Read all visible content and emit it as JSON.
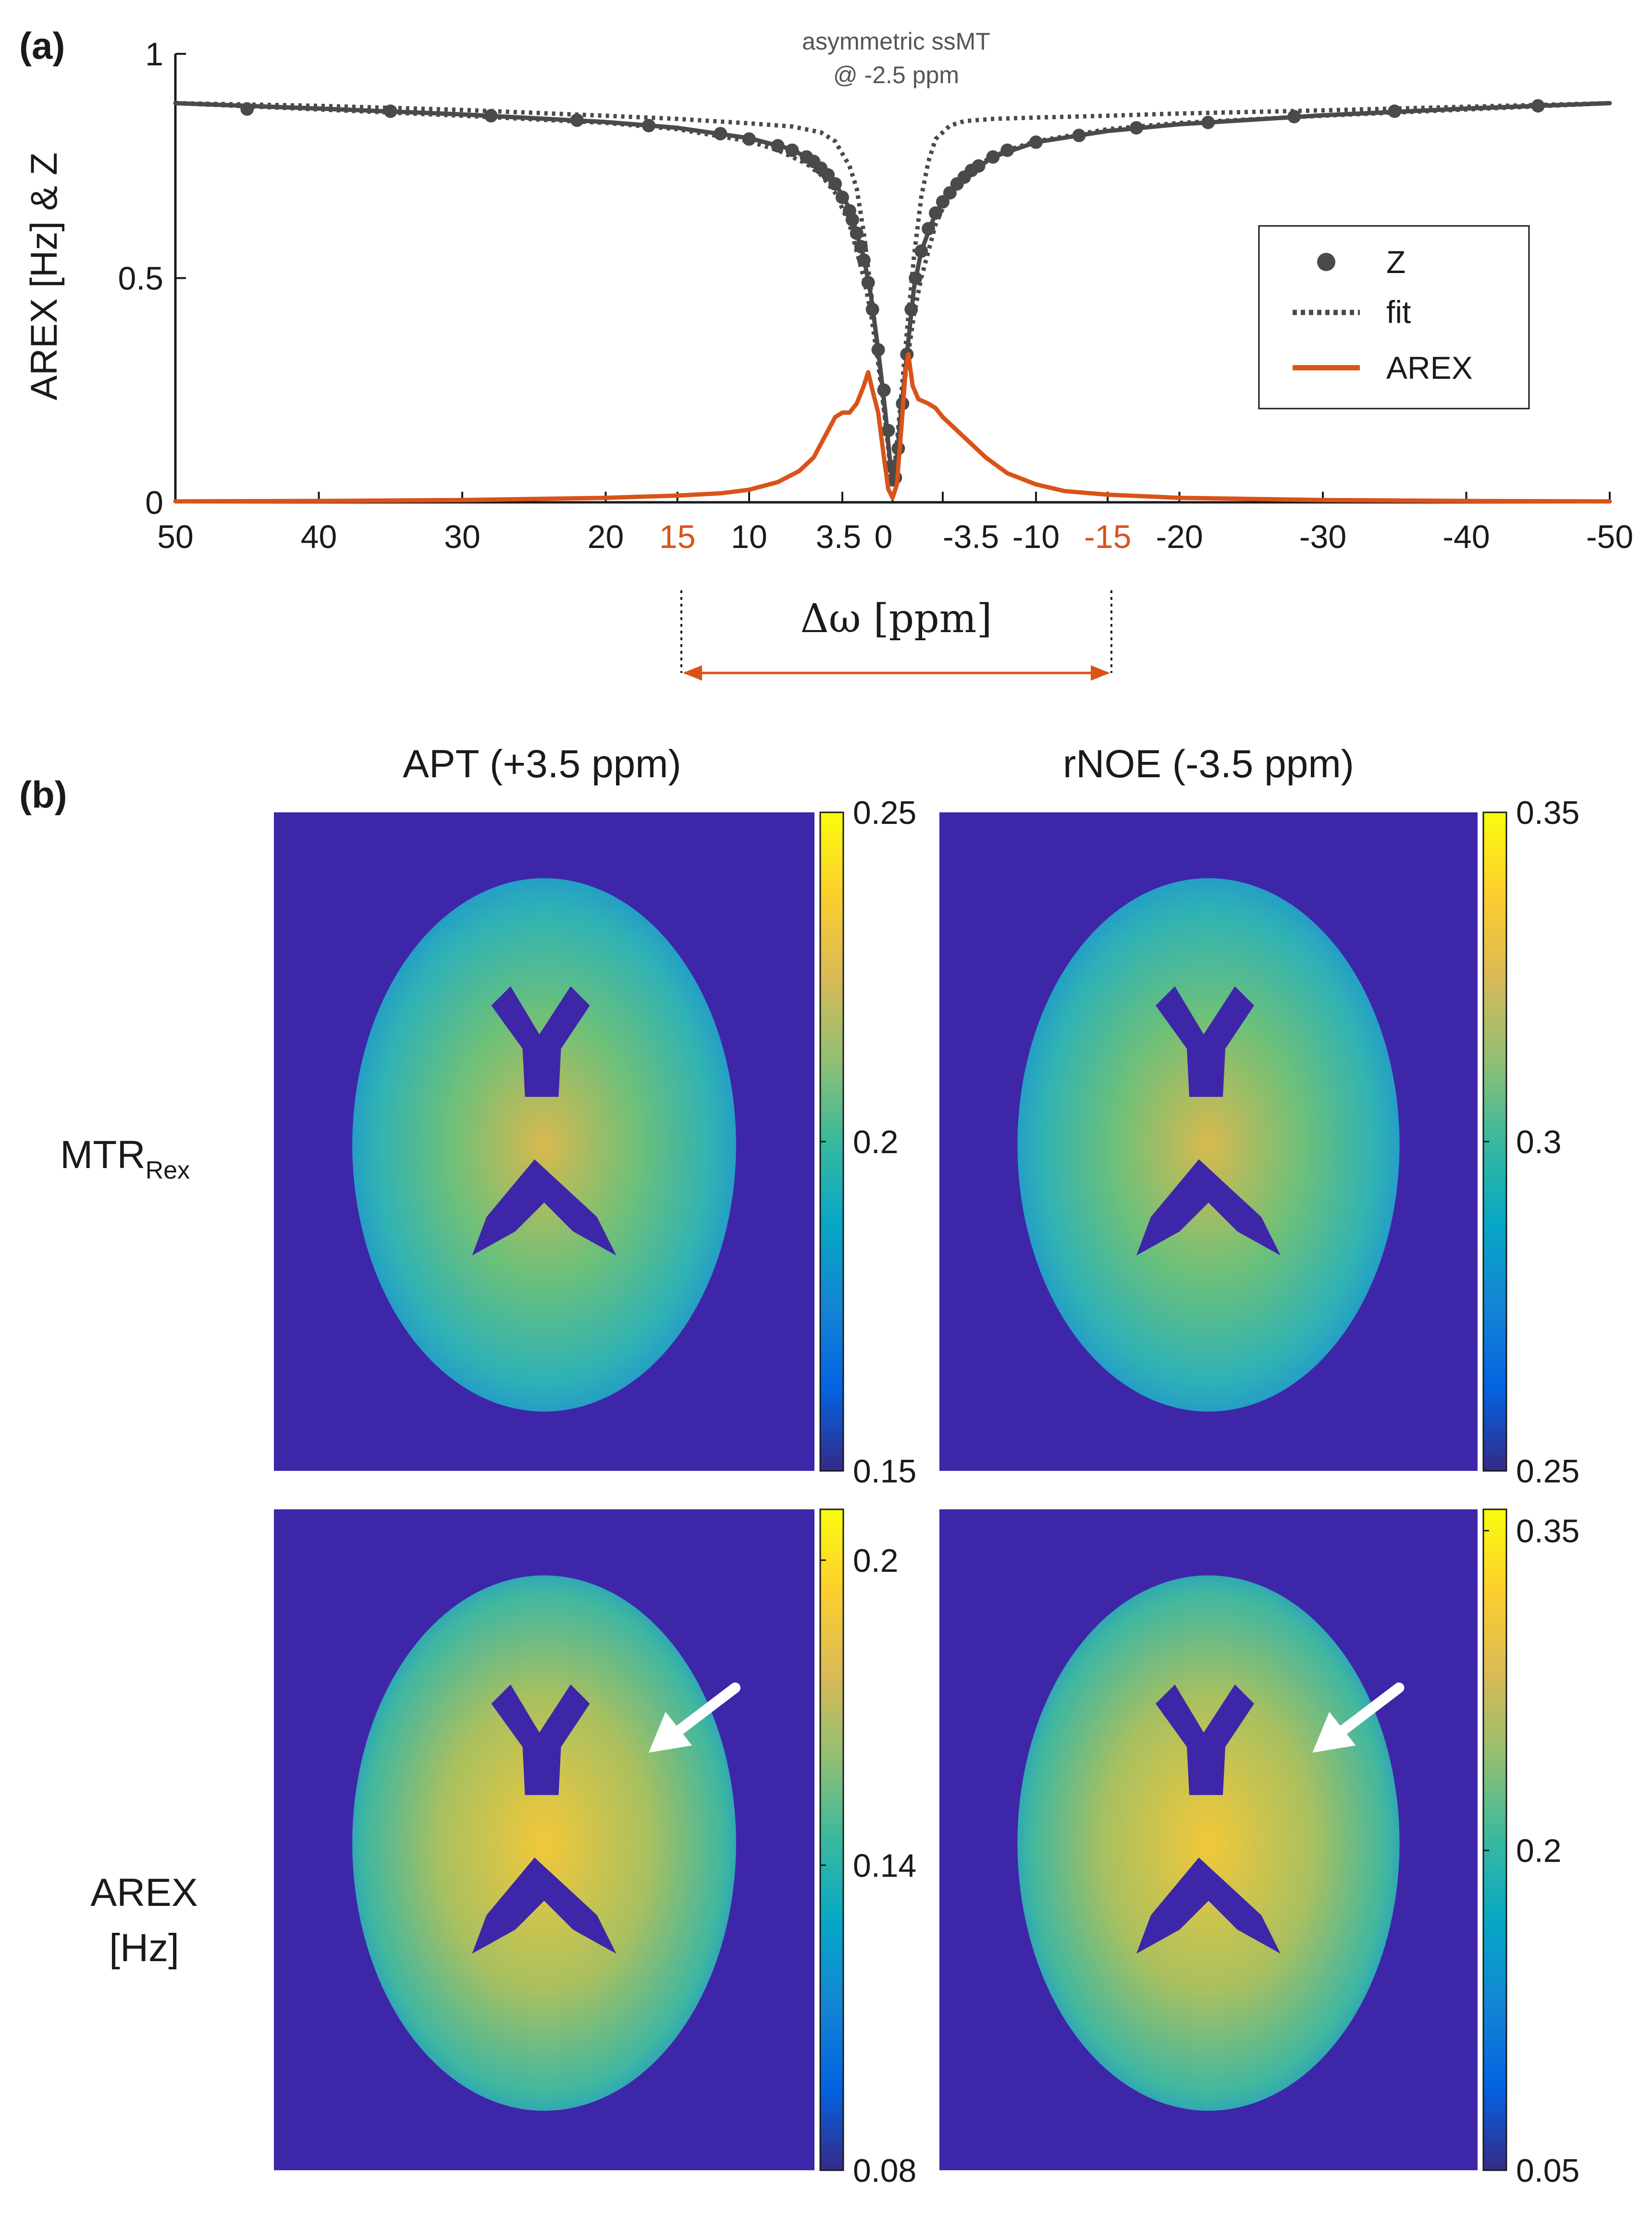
{
  "panel_a": {
    "label": "(a)",
    "annotation": [
      "asymmetric ssMT",
      "@ -2.5 ppm"
    ],
    "legend": [
      {
        "label": "Z",
        "style": "dots",
        "color": "#4a4a4a"
      },
      {
        "label": "fit",
        "style": "dotted",
        "color": "#4a4a4a"
      },
      {
        "label": "AREX",
        "style": "solid",
        "color": "#d95319"
      }
    ],
    "range_markers": [
      "15",
      "-15"
    ],
    "colors": {
      "z": "#4a4a4a",
      "arex": "#d95319",
      "axis": "#1a1a1a"
    }
  },
  "panel_b": {
    "label": "(b)",
    "column_titles": [
      "APT (+3.5 ppm)",
      "rNOE (-3.5 ppm)"
    ],
    "row_labels": [
      {
        "main": "MTR",
        "sub": "Rex"
      },
      {
        "lines": [
          "AREX",
          "[Hz]"
        ]
      }
    ],
    "images": [
      {
        "name": "mtrrex-apt-map",
        "colorbar_ticks": [
          "0.25",
          "0.2",
          "0.15"
        ],
        "colorbar_range": [
          0.15,
          0.25
        ],
        "arrow": false
      },
      {
        "name": "mtrrex-rnoe-map",
        "colorbar_ticks": [
          "0.35",
          "0.3",
          "0.25"
        ],
        "colorbar_range": [
          0.25,
          0.35
        ],
        "arrow": false
      },
      {
        "name": "arex-apt-map",
        "colorbar_ticks": [
          "0.2",
          "0.14",
          "0.08"
        ],
        "colorbar_range": [
          0.08,
          0.21
        ],
        "arrow": true
      },
      {
        "name": "arex-rnoe-map",
        "colorbar_ticks": [
          "0.35",
          "0.2",
          "0.05"
        ],
        "colorbar_range": [
          0.05,
          0.36
        ],
        "arrow": true
      }
    ],
    "colormap": "parula",
    "background_color": "#3e26a8"
  },
  "chart_data": {
    "type": "line",
    "xlabel": "Δω [ppm]",
    "ylabel": "AREX [Hz] & Z",
    "xlim": [
      50,
      -50
    ],
    "ylim": [
      0,
      1
    ],
    "x_reversed": true,
    "xticks": [
      {
        "value": 50,
        "label": "50"
      },
      {
        "value": 40,
        "label": "40"
      },
      {
        "value": 30,
        "label": "30"
      },
      {
        "value": 20,
        "label": "20"
      },
      {
        "value": 15,
        "label": "15",
        "highlight": true
      },
      {
        "value": 10,
        "label": "10"
      },
      {
        "value": 3.5,
        "label": "3.5"
      },
      {
        "value": 0,
        "label": "0"
      },
      {
        "value": -3.5,
        "label": "-3.5"
      },
      {
        "value": -10,
        "label": "-10"
      },
      {
        "value": -15,
        "label": "-15",
        "highlight": true
      },
      {
        "value": -20,
        "label": "-20"
      },
      {
        "value": -30,
        "label": "-30"
      },
      {
        "value": -40,
        "label": "-40"
      },
      {
        "value": -50,
        "label": "-50"
      }
    ],
    "yticks": [
      {
        "value": 0,
        "label": "0"
      },
      {
        "value": 0.5,
        "label": "0.5"
      },
      {
        "value": 1,
        "label": "1"
      }
    ],
    "series": [
      {
        "name": "Z",
        "style": "dots",
        "points": [
          [
            45,
            0.877
          ],
          [
            35,
            0.872
          ],
          [
            28,
            0.862
          ],
          [
            22,
            0.852
          ],
          [
            17,
            0.84
          ],
          [
            12,
            0.822
          ],
          [
            10,
            0.81
          ],
          [
            8,
            0.795
          ],
          [
            7,
            0.785
          ],
          [
            6,
            0.77
          ],
          [
            5.5,
            0.76
          ],
          [
            5,
            0.745
          ],
          [
            4.5,
            0.73
          ],
          [
            4,
            0.71
          ],
          [
            3.5,
            0.68
          ],
          [
            3,
            0.65
          ],
          [
            2.8,
            0.63
          ],
          [
            2.5,
            0.6
          ],
          [
            2.2,
            0.57
          ],
          [
            2,
            0.54
          ],
          [
            1.7,
            0.49
          ],
          [
            1.4,
            0.43
          ],
          [
            1,
            0.34
          ],
          [
            0.6,
            0.25
          ],
          [
            0.3,
            0.16
          ],
          [
            0.1,
            0.08
          ],
          [
            0,
            0.05
          ],
          [
            -0.2,
            0.055
          ],
          [
            -0.4,
            0.12
          ],
          [
            -0.7,
            0.22
          ],
          [
            -1,
            0.33
          ],
          [
            -1.3,
            0.43
          ],
          [
            -1.6,
            0.5
          ],
          [
            -2,
            0.56
          ],
          [
            -2.5,
            0.61
          ],
          [
            -3,
            0.645
          ],
          [
            -3.5,
            0.67
          ],
          [
            -4,
            0.69
          ],
          [
            -4.5,
            0.71
          ],
          [
            -5,
            0.725
          ],
          [
            -5.5,
            0.74
          ],
          [
            -6,
            0.75
          ],
          [
            -7,
            0.77
          ],
          [
            -8,
            0.785
          ],
          [
            -10,
            0.803
          ],
          [
            -13,
            0.818
          ],
          [
            -17,
            0.835
          ],
          [
            -22,
            0.847
          ],
          [
            -28,
            0.86
          ],
          [
            -35,
            0.872
          ],
          [
            -45,
            0.884
          ]
        ]
      },
      {
        "name": "Z (solid curve)",
        "style": "solid",
        "points": [
          [
            50,
            0.89
          ],
          [
            40,
            0.878
          ],
          [
            30,
            0.865
          ],
          [
            20,
            0.848
          ],
          [
            15,
            0.835
          ],
          [
            10,
            0.812
          ],
          [
            7,
            0.787
          ],
          [
            5,
            0.75
          ],
          [
            4,
            0.712
          ],
          [
            3,
            0.655
          ],
          [
            2,
            0.545
          ],
          [
            1.5,
            0.46
          ],
          [
            1,
            0.34
          ],
          [
            0.5,
            0.2
          ],
          [
            0.2,
            0.1
          ],
          [
            0,
            0.05
          ],
          [
            -0.2,
            0.06
          ],
          [
            -0.5,
            0.17
          ],
          [
            -1,
            0.33
          ],
          [
            -1.5,
            0.48
          ],
          [
            -2,
            0.56
          ],
          [
            -3,
            0.645
          ],
          [
            -4,
            0.69
          ],
          [
            -5,
            0.725
          ],
          [
            -7,
            0.77
          ],
          [
            -10,
            0.803
          ],
          [
            -15,
            0.828
          ],
          [
            -20,
            0.843
          ],
          [
            -30,
            0.863
          ],
          [
            -40,
            0.878
          ],
          [
            -50,
            0.89
          ]
        ]
      },
      {
        "name": "fit",
        "style": "dotted",
        "points": [
          [
            50,
            0.89
          ],
          [
            40,
            0.884
          ],
          [
            30,
            0.875
          ],
          [
            20,
            0.862
          ],
          [
            15,
            0.855
          ],
          [
            10,
            0.845
          ],
          [
            7,
            0.838
          ],
          [
            5,
            0.825
          ],
          [
            4,
            0.805
          ],
          [
            3,
            0.75
          ],
          [
            2.5,
            0.7
          ],
          [
            2,
            0.6
          ],
          [
            1.5,
            0.47
          ],
          [
            1,
            0.33
          ],
          [
            0.5,
            0.18
          ],
          [
            0.2,
            0.1
          ],
          [
            0,
            0.05
          ],
          [
            -0.2,
            0.1
          ],
          [
            -0.5,
            0.2
          ],
          [
            -1,
            0.38
          ],
          [
            -1.5,
            0.55
          ],
          [
            -2,
            0.68
          ],
          [
            -2.5,
            0.76
          ],
          [
            -3,
            0.81
          ],
          [
            -4,
            0.84
          ],
          [
            -5,
            0.85
          ],
          [
            -7,
            0.855
          ],
          [
            -10,
            0.858
          ],
          [
            -15,
            0.862
          ],
          [
            -20,
            0.867
          ],
          [
            -30,
            0.874
          ],
          [
            -40,
            0.882
          ],
          [
            -50,
            0.89
          ]
        ]
      },
      {
        "name": "fit (inner)",
        "style": "dotted",
        "points": [
          [
            50,
            0.89
          ],
          [
            40,
            0.876
          ],
          [
            30,
            0.862
          ],
          [
            20,
            0.846
          ],
          [
            15,
            0.832
          ],
          [
            10,
            0.805
          ],
          [
            8,
            0.785
          ],
          [
            6,
            0.755
          ],
          [
            5,
            0.73
          ],
          [
            4,
            0.69
          ],
          [
            3,
            0.62
          ],
          [
            2,
            0.5
          ],
          [
            1.5,
            0.42
          ],
          [
            1,
            0.31
          ],
          [
            0.5,
            0.18
          ],
          [
            0.2,
            0.09
          ],
          [
            0,
            0.05
          ],
          [
            -0.2,
            0.09
          ],
          [
            -0.5,
            0.18
          ],
          [
            -1,
            0.31
          ],
          [
            -1.5,
            0.42
          ],
          [
            -2,
            0.5
          ],
          [
            -3,
            0.62
          ],
          [
            -4,
            0.69
          ],
          [
            -5,
            0.73
          ],
          [
            -6,
            0.755
          ],
          [
            -8,
            0.785
          ],
          [
            -10,
            0.805
          ],
          [
            -15,
            0.832
          ],
          [
            -20,
            0.846
          ],
          [
            -30,
            0.862
          ],
          [
            -40,
            0.876
          ],
          [
            -50,
            0.89
          ]
        ]
      },
      {
        "name": "AREX",
        "style": "solid",
        "points": [
          [
            50,
            0.002
          ],
          [
            40,
            0.003
          ],
          [
            30,
            0.005
          ],
          [
            20,
            0.01
          ],
          [
            15,
            0.015
          ],
          [
            12,
            0.02
          ],
          [
            10,
            0.028
          ],
          [
            8,
            0.045
          ],
          [
            6.5,
            0.07
          ],
          [
            5.5,
            0.1
          ],
          [
            5,
            0.13
          ],
          [
            4.5,
            0.16
          ],
          [
            4,
            0.19
          ],
          [
            3.5,
            0.2
          ],
          [
            3,
            0.2
          ],
          [
            2.5,
            0.22
          ],
          [
            2,
            0.26
          ],
          [
            1.7,
            0.29
          ],
          [
            1.4,
            0.25
          ],
          [
            1,
            0.2
          ],
          [
            0.6,
            0.1
          ],
          [
            0.3,
            0.03
          ],
          [
            0,
            0.01
          ],
          [
            -0.3,
            0.04
          ],
          [
            -0.6,
            0.16
          ],
          [
            -0.9,
            0.29
          ],
          [
            -1.1,
            0.33
          ],
          [
            -1.4,
            0.26
          ],
          [
            -1.8,
            0.23
          ],
          [
            -2.5,
            0.22
          ],
          [
            -3,
            0.21
          ],
          [
            -3.5,
            0.19
          ],
          [
            -4.5,
            0.16
          ],
          [
            -5.5,
            0.13
          ],
          [
            -6.5,
            0.1
          ],
          [
            -8,
            0.065
          ],
          [
            -10,
            0.04
          ],
          [
            -12,
            0.025
          ],
          [
            -15,
            0.017
          ],
          [
            -20,
            0.01
          ],
          [
            -30,
            0.005
          ],
          [
            -40,
            0.003
          ],
          [
            -50,
            0.002
          ]
        ]
      }
    ]
  }
}
